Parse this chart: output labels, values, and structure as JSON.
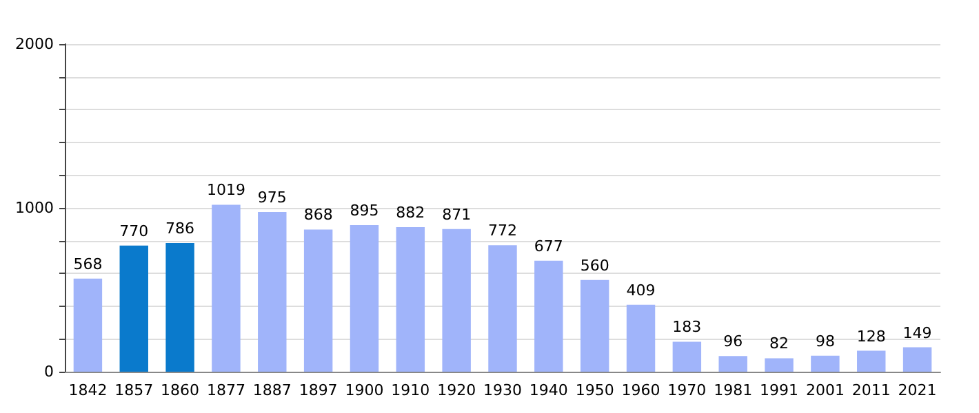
{
  "chart_data": {
    "type": "bar",
    "categories": [
      "1842",
      "1857",
      "1860",
      "1877",
      "1887",
      "1897",
      "1900",
      "1910",
      "1920",
      "1930",
      "1940",
      "1950",
      "1960",
      "1970",
      "1981",
      "1991",
      "2001",
      "2011",
      "2021"
    ],
    "values": [
      568,
      770,
      786,
      1019,
      975,
      868,
      895,
      882,
      871,
      772,
      677,
      560,
      409,
      183,
      96,
      82,
      98,
      128,
      149
    ],
    "colors": [
      "#a0b4fa",
      "#0a7acc",
      "#0a7acc",
      "#a0b4fa",
      "#a0b4fa",
      "#a0b4fa",
      "#a0b4fa",
      "#a0b4fa",
      "#a0b4fa",
      "#a0b4fa",
      "#a0b4fa",
      "#a0b4fa",
      "#a0b4fa",
      "#a0b4fa",
      "#a0b4fa",
      "#a0b4fa",
      "#a0b4fa",
      "#a0b4fa",
      "#a0b4fa"
    ],
    "ylim": [
      0,
      2000
    ],
    "yticks": [
      0,
      {
        "value": 200,
        "label": null
      },
      {
        "value": 400,
        "label": null
      },
      {
        "value": 600,
        "label": null
      },
      {
        "value": 800,
        "label": null
      },
      1000,
      {
        "value": 1200,
        "label": null
      },
      {
        "value": 1400,
        "label": null
      },
      {
        "value": 1600,
        "label": null
      },
      {
        "value": 1800,
        "label": null
      },
      2000
    ],
    "grid": "y",
    "data_labels": true
  }
}
